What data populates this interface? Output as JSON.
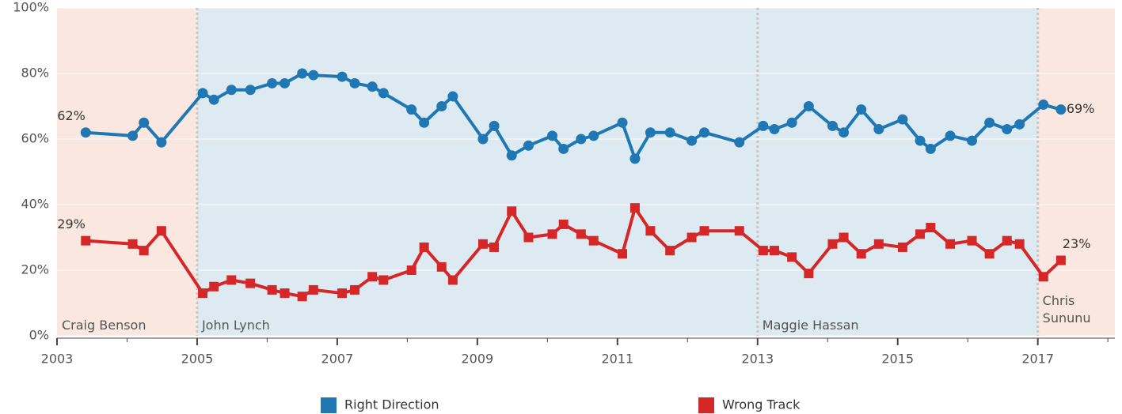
{
  "chart_data": {
    "type": "line",
    "xlim": [
      2003,
      2018.1
    ],
    "xticks": [
      2003,
      2005,
      2007,
      2009,
      2011,
      2013,
      2015,
      2017
    ],
    "xminor_ticks": [
      2004,
      2006,
      2008,
      2010,
      2012,
      2014,
      2016,
      2018
    ],
    "ylim": [
      0,
      100
    ],
    "yticks": [
      {
        "value": 0,
        "label": "0%"
      },
      {
        "value": 20,
        "label": "20%"
      },
      {
        "value": 40,
        "label": "40%"
      },
      {
        "value": 60,
        "label": "60%"
      },
      {
        "value": 80,
        "label": "80%"
      },
      {
        "value": 100,
        "label": "100%"
      }
    ],
    "grid": true,
    "legend": "bottom",
    "periods": [
      {
        "label": "Craig Benson",
        "start": 2003,
        "end": 2005,
        "color": "#fae7df"
      },
      {
        "label": "John Lynch",
        "start": 2005,
        "end": 2013,
        "color": "#deeaf1"
      },
      {
        "label": "Maggie Hassan",
        "start": 2013,
        "end": 2017,
        "color": "#deeaf1"
      },
      {
        "label": "Chris Sununu",
        "start": 2017,
        "end": 2018.1,
        "color": "#fae7df"
      }
    ],
    "x": [
      2003.41,
      2004.08,
      2004.24,
      2004.49,
      2005.08,
      2005.24,
      2005.49,
      2005.76,
      2006.07,
      2006.25,
      2006.5,
      2006.66,
      2007.07,
      2007.25,
      2007.5,
      2007.66,
      2008.06,
      2008.24,
      2008.49,
      2008.65,
      2009.08,
      2009.24,
      2009.49,
      2009.73,
      2010.07,
      2010.23,
      2010.48,
      2010.66,
      2011.07,
      2011.25,
      2011.47,
      2011.75,
      2012.06,
      2012.24,
      2012.74,
      2013.08,
      2013.24,
      2013.49,
      2013.73,
      2014.07,
      2014.23,
      2014.48,
      2014.73,
      2015.07,
      2015.32,
      2015.47,
      2015.75,
      2016.06,
      2016.31,
      2016.56,
      2016.74,
      2017.08,
      2017.33
    ],
    "series": [
      {
        "name": "Right Direction",
        "color": "#1f77b4",
        "marker": "circle",
        "values": [
          62,
          61,
          65,
          59,
          74,
          72,
          75,
          75,
          77,
          77,
          80,
          79.5,
          79,
          77,
          76,
          74,
          69,
          65,
          70,
          73,
          60,
          64,
          55,
          58,
          61,
          57,
          60,
          61,
          65,
          54,
          62,
          62,
          59.5,
          62,
          59,
          64,
          63,
          65,
          70,
          64,
          62,
          69,
          63,
          66,
          59.5,
          57,
          61,
          59.5,
          65,
          63,
          64.5,
          70.5,
          69
        ],
        "value_labels": [
          "62%",
          null,
          null,
          null,
          null,
          null,
          null,
          null,
          null,
          null,
          null,
          null,
          null,
          null,
          null,
          null,
          null,
          null,
          null,
          null,
          null,
          null,
          null,
          null,
          null,
          null,
          null,
          null,
          null,
          null,
          null,
          null,
          null,
          null,
          null,
          null,
          null,
          null,
          null,
          null,
          null,
          null,
          null,
          null,
          null,
          null,
          null,
          null,
          null,
          null,
          null,
          null,
          "69%"
        ]
      },
      {
        "name": "Wrong Track",
        "color": "#d62728",
        "marker": "square",
        "values": [
          29,
          28,
          26,
          32,
          13,
          15,
          17,
          16,
          14,
          13,
          12,
          14,
          13,
          14,
          18,
          17,
          20,
          27,
          21,
          17,
          28,
          27,
          38,
          30,
          31,
          34,
          31,
          29,
          25,
          39,
          32,
          26,
          30,
          32,
          32,
          26,
          26,
          24,
          19,
          28,
          30,
          25,
          28,
          27,
          31,
          33,
          28,
          29,
          25,
          29,
          28,
          18,
          23
        ],
        "value_labels": [
          "29%",
          null,
          null,
          null,
          null,
          null,
          null,
          null,
          null,
          null,
          null,
          null,
          null,
          null,
          null,
          null,
          null,
          null,
          null,
          null,
          null,
          null,
          null,
          null,
          null,
          null,
          null,
          null,
          null,
          null,
          null,
          null,
          null,
          null,
          null,
          null,
          null,
          null,
          null,
          null,
          null,
          null,
          null,
          null,
          null,
          null,
          null,
          null,
          null,
          null,
          null,
          null,
          "23%"
        ]
      }
    ]
  }
}
